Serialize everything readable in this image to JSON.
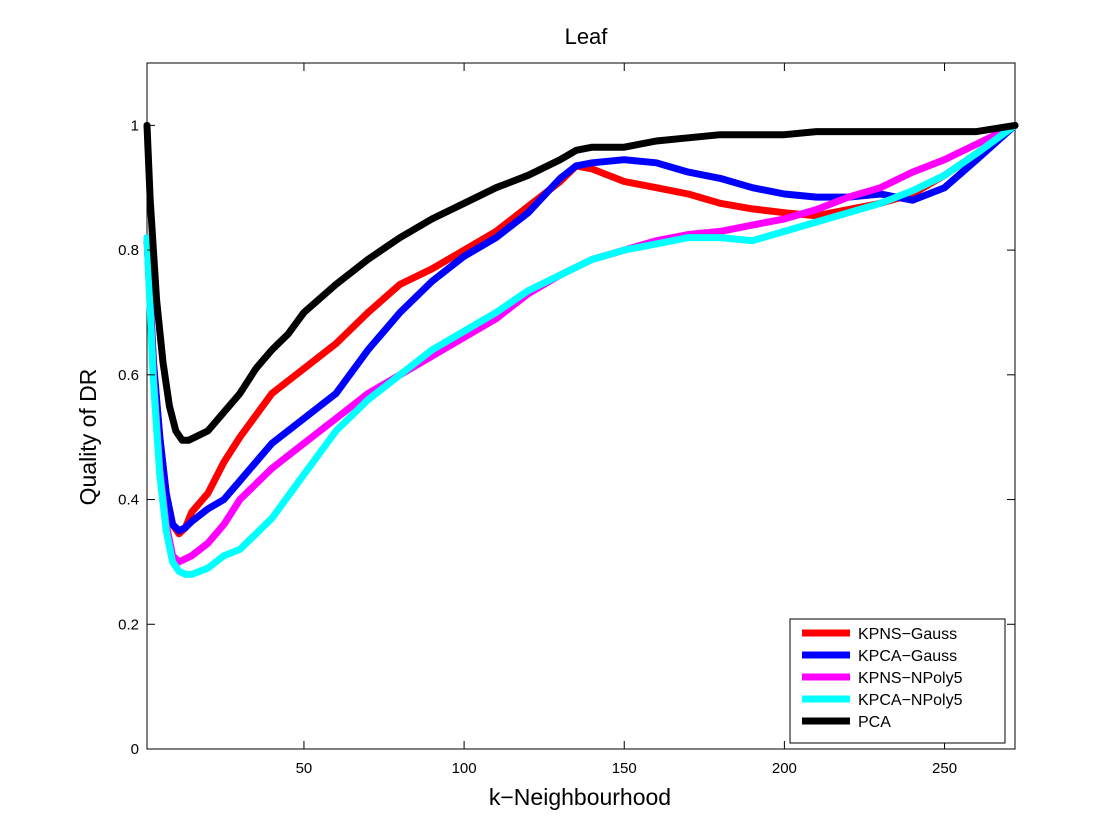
{
  "chart_data": {
    "type": "line",
    "title": "Leaf",
    "xlabel": "k−Neighbourhood",
    "ylabel": "Quality of DR",
    "xlim": [
      1,
      272
    ],
    "ylim": [
      0,
      1.1
    ],
    "xticks": [
      50,
      100,
      150,
      200,
      250
    ],
    "yticks": [
      0,
      0.2,
      0.4,
      0.6,
      0.8,
      1
    ],
    "xtick_labels": [
      "50",
      "100",
      "150",
      "200",
      "250"
    ],
    "ytick_labels": [
      "0",
      "0.2",
      "0.4",
      "0.6",
      "0.8",
      "1"
    ],
    "grid": false,
    "legend_position": "bottom-right",
    "series": [
      {
        "name": "KPNS−Gauss",
        "color": "#ff0000",
        "points": [
          [
            1,
            0.82
          ],
          [
            3,
            0.62
          ],
          [
            5,
            0.5
          ],
          [
            7,
            0.41
          ],
          [
            9,
            0.36
          ],
          [
            11,
            0.345
          ],
          [
            13,
            0.355
          ],
          [
            15,
            0.38
          ],
          [
            20,
            0.41
          ],
          [
            25,
            0.46
          ],
          [
            30,
            0.5
          ],
          [
            40,
            0.57
          ],
          [
            50,
            0.61
          ],
          [
            60,
            0.65
          ],
          [
            70,
            0.7
          ],
          [
            80,
            0.745
          ],
          [
            90,
            0.77
          ],
          [
            100,
            0.8
          ],
          [
            110,
            0.83
          ],
          [
            120,
            0.87
          ],
          [
            130,
            0.91
          ],
          [
            135,
            0.935
          ],
          [
            140,
            0.93
          ],
          [
            150,
            0.91
          ],
          [
            160,
            0.9
          ],
          [
            170,
            0.89
          ],
          [
            180,
            0.875
          ],
          [
            190,
            0.866
          ],
          [
            200,
            0.86
          ],
          [
            210,
            0.855
          ],
          [
            220,
            0.865
          ],
          [
            230,
            0.875
          ],
          [
            240,
            0.89
          ],
          [
            250,
            0.92
          ],
          [
            260,
            0.955
          ],
          [
            272,
            1.0
          ]
        ]
      },
      {
        "name": "KPCA−Gauss",
        "color": "#0000ff",
        "points": [
          [
            1,
            0.82
          ],
          [
            3,
            0.62
          ],
          [
            5,
            0.5
          ],
          [
            7,
            0.41
          ],
          [
            9,
            0.36
          ],
          [
            11,
            0.35
          ],
          [
            13,
            0.355
          ],
          [
            15,
            0.365
          ],
          [
            20,
            0.385
          ],
          [
            25,
            0.4
          ],
          [
            30,
            0.43
          ],
          [
            40,
            0.49
          ],
          [
            50,
            0.53
          ],
          [
            60,
            0.57
          ],
          [
            70,
            0.64
          ],
          [
            80,
            0.7
          ],
          [
            90,
            0.75
          ],
          [
            100,
            0.79
          ],
          [
            110,
            0.82
          ],
          [
            120,
            0.86
          ],
          [
            130,
            0.915
          ],
          [
            135,
            0.935
          ],
          [
            140,
            0.94
          ],
          [
            150,
            0.945
          ],
          [
            160,
            0.94
          ],
          [
            170,
            0.925
          ],
          [
            180,
            0.915
          ],
          [
            190,
            0.9
          ],
          [
            200,
            0.89
          ],
          [
            210,
            0.885
          ],
          [
            220,
            0.885
          ],
          [
            230,
            0.89
          ],
          [
            240,
            0.88
          ],
          [
            250,
            0.9
          ],
          [
            260,
            0.945
          ],
          [
            272,
            1.0
          ]
        ]
      },
      {
        "name": "KPNS−NPoly5",
        "color": "#ff00ff",
        "points": [
          [
            1,
            0.82
          ],
          [
            3,
            0.6
          ],
          [
            5,
            0.45
          ],
          [
            7,
            0.36
          ],
          [
            9,
            0.31
          ],
          [
            11,
            0.3
          ],
          [
            13,
            0.305
          ],
          [
            15,
            0.31
          ],
          [
            20,
            0.33
          ],
          [
            25,
            0.36
          ],
          [
            30,
            0.4
          ],
          [
            40,
            0.45
          ],
          [
            50,
            0.49
          ],
          [
            60,
            0.53
          ],
          [
            70,
            0.57
          ],
          [
            80,
            0.6
          ],
          [
            90,
            0.63
          ],
          [
            100,
            0.66
          ],
          [
            110,
            0.69
          ],
          [
            120,
            0.73
          ],
          [
            130,
            0.76
          ],
          [
            140,
            0.785
          ],
          [
            150,
            0.8
          ],
          [
            160,
            0.815
          ],
          [
            170,
            0.825
          ],
          [
            180,
            0.83
          ],
          [
            190,
            0.84
          ],
          [
            200,
            0.85
          ],
          [
            210,
            0.865
          ],
          [
            220,
            0.885
          ],
          [
            230,
            0.9
          ],
          [
            240,
            0.925
          ],
          [
            250,
            0.945
          ],
          [
            260,
            0.97
          ],
          [
            272,
            1.0
          ]
        ]
      },
      {
        "name": "KPCA−NPoly5",
        "color": "#00ffff",
        "points": [
          [
            1,
            0.82
          ],
          [
            3,
            0.59
          ],
          [
            5,
            0.44
          ],
          [
            7,
            0.35
          ],
          [
            9,
            0.3
          ],
          [
            11,
            0.285
          ],
          [
            13,
            0.28
          ],
          [
            15,
            0.28
          ],
          [
            20,
            0.29
          ],
          [
            25,
            0.31
          ],
          [
            30,
            0.32
          ],
          [
            40,
            0.37
          ],
          [
            50,
            0.44
          ],
          [
            60,
            0.51
          ],
          [
            70,
            0.56
          ],
          [
            80,
            0.6
          ],
          [
            90,
            0.64
          ],
          [
            100,
            0.67
          ],
          [
            110,
            0.7
          ],
          [
            120,
            0.735
          ],
          [
            130,
            0.76
          ],
          [
            140,
            0.785
          ],
          [
            150,
            0.8
          ],
          [
            160,
            0.81
          ],
          [
            170,
            0.82
          ],
          [
            180,
            0.82
          ],
          [
            190,
            0.815
          ],
          [
            200,
            0.83
          ],
          [
            210,
            0.845
          ],
          [
            220,
            0.86
          ],
          [
            230,
            0.875
          ],
          [
            240,
            0.895
          ],
          [
            250,
            0.92
          ],
          [
            260,
            0.955
          ],
          [
            272,
            1.0
          ]
        ]
      },
      {
        "name": "PCA",
        "color": "#000000",
        "points": [
          [
            1,
            1.0
          ],
          [
            2,
            0.88
          ],
          [
            4,
            0.72
          ],
          [
            6,
            0.62
          ],
          [
            8,
            0.55
          ],
          [
            10,
            0.51
          ],
          [
            12,
            0.495
          ],
          [
            14,
            0.495
          ],
          [
            16,
            0.5
          ],
          [
            20,
            0.51
          ],
          [
            25,
            0.54
          ],
          [
            30,
            0.57
          ],
          [
            35,
            0.61
          ],
          [
            40,
            0.64
          ],
          [
            45,
            0.665
          ],
          [
            50,
            0.7
          ],
          [
            60,
            0.745
          ],
          [
            70,
            0.785
          ],
          [
            80,
            0.82
          ],
          [
            90,
            0.85
          ],
          [
            100,
            0.875
          ],
          [
            110,
            0.9
          ],
          [
            120,
            0.92
          ],
          [
            130,
            0.945
          ],
          [
            135,
            0.96
          ],
          [
            140,
            0.965
          ],
          [
            150,
            0.965
          ],
          [
            160,
            0.975
          ],
          [
            170,
            0.98
          ],
          [
            180,
            0.985
          ],
          [
            190,
            0.985
          ],
          [
            200,
            0.985
          ],
          [
            210,
            0.99
          ],
          [
            220,
            0.99
          ],
          [
            230,
            0.99
          ],
          [
            240,
            0.99
          ],
          [
            250,
            0.99
          ],
          [
            260,
            0.99
          ],
          [
            272,
            1.0
          ]
        ]
      }
    ]
  }
}
